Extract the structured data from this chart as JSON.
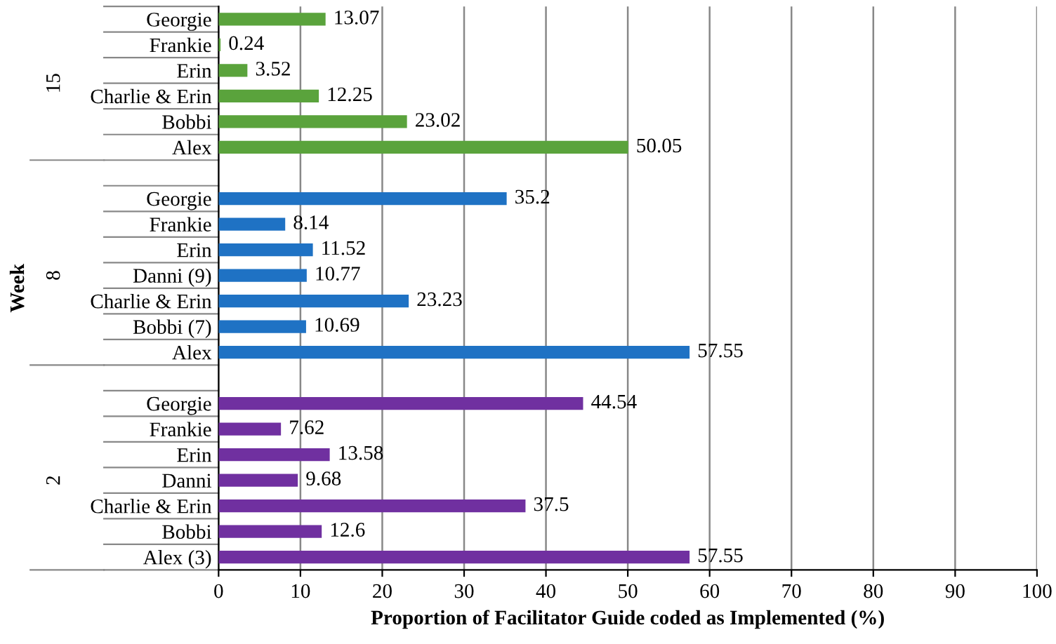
{
  "chart_data": {
    "type": "bar",
    "orientation": "horizontal",
    "xlabel": "Proportion of Facilitator Guide coded as Implemented (%)",
    "ylabel": "Week",
    "categories": [
      "Georgie",
      "Frankie",
      "Erin",
      "Charlie & Erin",
      "Bobbi",
      "Alex",
      null,
      "Georgie",
      "Frankie",
      "Erin",
      "Danni (9)",
      "Charlie & Erin",
      "Bobbi (7)",
      "Alex",
      null,
      "Georgie",
      "Frankie",
      "Erin",
      "Danni",
      "Charlie & Erin",
      "Bobbi",
      "Alex (3)"
    ],
    "values": [
      13.07,
      0.24,
      3.52,
      12.25,
      23.02,
      50.05,
      null,
      35.2,
      8.14,
      11.52,
      10.77,
      23.23,
      10.69,
      57.55,
      null,
      44.54,
      7.62,
      13.58,
      9.68,
      37.5,
      12.6,
      57.55
    ],
    "colors": [
      "#5aa33c",
      "#5aa33c",
      "#5aa33c",
      "#5aa33c",
      "#5aa33c",
      "#5aa33c",
      null,
      "#1f72c4",
      "#1f72c4",
      "#1f72c4",
      "#1f72c4",
      "#1f72c4",
      "#1f72c4",
      "#1f72c4",
      null,
      "#7030a0",
      "#7030a0",
      "#7030a0",
      "#7030a0",
      "#7030a0",
      "#7030a0",
      "#7030a0"
    ],
    "annotations": [
      "15",
      "8",
      "2"
    ],
    "xlim": [
      0,
      100
    ],
    "xticks": [
      0,
      10,
      20,
      30,
      40,
      50,
      60,
      70,
      80,
      90,
      100
    ],
    "grid": "x",
    "data_labels": true
  }
}
